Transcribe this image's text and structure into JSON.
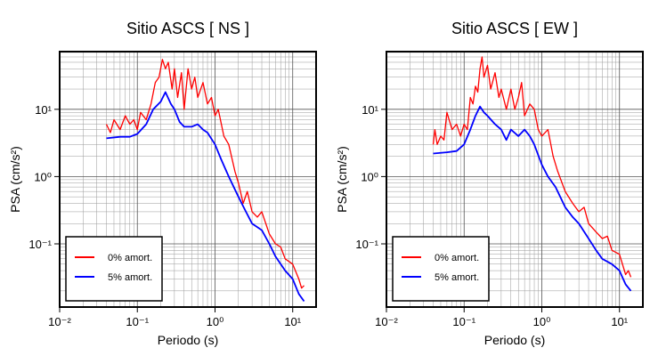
{
  "chart_data": [
    {
      "type": "line",
      "title": "Sitio ASCS [ NS ]",
      "x_label": "Periodo (s)",
      "y_label": "PSA (cm/s²)",
      "log_x": true,
      "log_y": true,
      "grid": true,
      "legend": "lower left",
      "xlim": [
        0.01,
        20
      ],
      "ylim": [
        0.0115,
        72
      ],
      "xticks": [
        {
          "value": 0.01,
          "label": "10⁻²"
        },
        {
          "value": 0.1,
          "label": "10⁻¹"
        },
        {
          "value": 1,
          "label": "10⁰"
        },
        {
          "value": 10,
          "label": "10¹"
        }
      ],
      "yticks": [
        {
          "value": 0.1,
          "label": "10⁻¹"
        },
        {
          "value": 1,
          "label": "10⁰"
        },
        {
          "value": 10,
          "label": "10¹"
        }
      ],
      "series": [
        {
          "name": "0% amort.",
          "color": "#ff0000",
          "x": [
            0.04,
            0.045,
            0.05,
            0.06,
            0.07,
            0.08,
            0.09,
            0.1,
            0.11,
            0.13,
            0.15,
            0.17,
            0.19,
            0.21,
            0.23,
            0.25,
            0.28,
            0.3,
            0.33,
            0.37,
            0.4,
            0.45,
            0.5,
            0.55,
            0.6,
            0.7,
            0.8,
            0.9,
            1.0,
            1.1,
            1.3,
            1.5,
            1.8,
            2,
            2.3,
            2.6,
            3,
            3.5,
            4,
            5,
            6,
            7,
            8,
            10,
            12,
            13,
            14
          ],
          "values": [
            6,
            4.5,
            7,
            5,
            8,
            6,
            7,
            5,
            9,
            7,
            12,
            25,
            30,
            55,
            40,
            50,
            20,
            40,
            15,
            35,
            10,
            40,
            20,
            30,
            15,
            25,
            12,
            15,
            8,
            10,
            4,
            3,
            1.2,
            0.8,
            0.4,
            0.6,
            0.3,
            0.25,
            0.3,
            0.14,
            0.1,
            0.09,
            0.06,
            0.05,
            0.03,
            0.022,
            0.024
          ]
        },
        {
          "name": "5% amort.",
          "color": "#0000ff",
          "x": [
            0.04,
            0.06,
            0.08,
            0.1,
            0.13,
            0.16,
            0.2,
            0.23,
            0.27,
            0.3,
            0.35,
            0.4,
            0.5,
            0.6,
            0.7,
            0.8,
            1.0,
            1.2,
            1.5,
            2,
            2.5,
            3,
            4,
            5,
            6,
            8,
            10,
            12,
            14
          ],
          "values": [
            3.7,
            3.9,
            3.9,
            4.3,
            6,
            10,
            13,
            18,
            12,
            10,
            6.5,
            5.5,
            5.5,
            6,
            5,
            4.5,
            3,
            1.8,
            1.0,
            0.5,
            0.3,
            0.2,
            0.16,
            0.1,
            0.065,
            0.04,
            0.03,
            0.018,
            0.014
          ]
        }
      ]
    },
    {
      "type": "line",
      "title": "Sitio ASCS [ EW ]",
      "x_label": "Periodo (s)",
      "y_label": "PSA (cm/s²)",
      "log_x": true,
      "log_y": true,
      "grid": true,
      "legend": "lower left",
      "xlim": [
        0.01,
        20
      ],
      "ylim": [
        0.0115,
        72
      ],
      "xticks": [
        {
          "value": 0.01,
          "label": "10⁻²"
        },
        {
          "value": 0.1,
          "label": "10⁻¹"
        },
        {
          "value": 1,
          "label": "10⁰"
        },
        {
          "value": 10,
          "label": "10¹"
        }
      ],
      "yticks": [
        {
          "value": 0.1,
          "label": "10⁻¹"
        },
        {
          "value": 1,
          "label": "10⁰"
        },
        {
          "value": 10,
          "label": "10¹"
        }
      ],
      "series": [
        {
          "name": "0% amort.",
          "color": "#ff0000",
          "x": [
            0.04,
            0.042,
            0.045,
            0.05,
            0.055,
            0.06,
            0.07,
            0.08,
            0.09,
            0.1,
            0.11,
            0.12,
            0.13,
            0.14,
            0.15,
            0.16,
            0.17,
            0.18,
            0.2,
            0.22,
            0.25,
            0.28,
            0.3,
            0.35,
            0.4,
            0.45,
            0.5,
            0.55,
            0.6,
            0.7,
            0.8,
            0.9,
            1.0,
            1.2,
            1.4,
            1.6,
            2,
            2.5,
            3,
            3.5,
            4,
            5,
            6,
            7,
            8,
            10,
            12,
            13,
            14
          ],
          "values": [
            3,
            5,
            3,
            4,
            3.5,
            9,
            5,
            6,
            4,
            6,
            5,
            15,
            12,
            22,
            18,
            40,
            60,
            30,
            45,
            20,
            35,
            15,
            20,
            10,
            20,
            10,
            15,
            25,
            8,
            12,
            10,
            5,
            4,
            5,
            2,
            1.2,
            0.6,
            0.4,
            0.3,
            0.35,
            0.2,
            0.15,
            0.12,
            0.13,
            0.08,
            0.07,
            0.035,
            0.04,
            0.032
          ]
        },
        {
          "name": "5% amort.",
          "color": "#0000ff",
          "x": [
            0.04,
            0.06,
            0.08,
            0.1,
            0.12,
            0.14,
            0.16,
            0.18,
            0.2,
            0.25,
            0.3,
            0.35,
            0.4,
            0.5,
            0.6,
            0.7,
            0.8,
            1.0,
            1.2,
            1.5,
            2,
            2.5,
            3,
            4,
            5,
            6,
            8,
            10,
            12,
            14
          ],
          "values": [
            2.2,
            2.3,
            2.4,
            3,
            5,
            8,
            11,
            9,
            8,
            6,
            5,
            3.5,
            5,
            4,
            5,
            4,
            3,
            1.5,
            1,
            0.7,
            0.35,
            0.25,
            0.2,
            0.12,
            0.08,
            0.06,
            0.05,
            0.04,
            0.025,
            0.02
          ]
        }
      ]
    }
  ]
}
